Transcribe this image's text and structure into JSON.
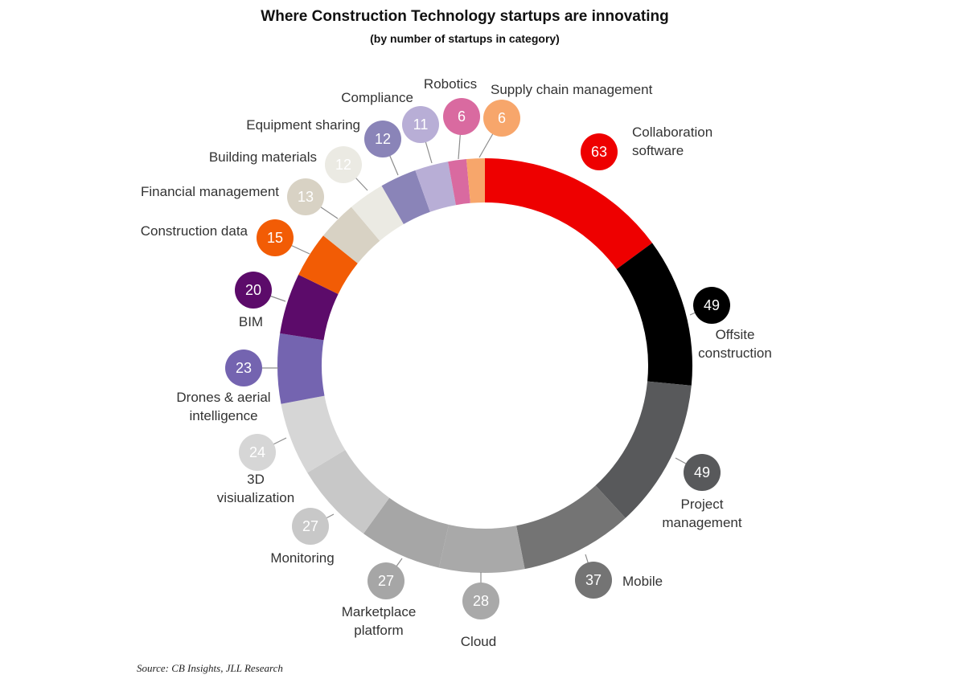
{
  "chart_data": {
    "type": "pie",
    "title": "Where Construction Technology startups are innovating",
    "subtitle": "(by number of startups in category)",
    "source": "Source: CB Insights, JLL Research",
    "slices": [
      {
        "label": "Collaboration software",
        "label_lines": [
          "Collaboration",
          "software"
        ],
        "value": 63,
        "color": "#ee0000",
        "text_color": "#ffffff"
      },
      {
        "label": "Offsite construction",
        "label_lines": [
          "Offsite",
          "construction"
        ],
        "value": 49,
        "color": "#000000",
        "text_color": "#ffffff"
      },
      {
        "label": "Project management",
        "label_lines": [
          "Project",
          "management"
        ],
        "value": 49,
        "color": "#58595b",
        "text_color": "#ffffff"
      },
      {
        "label": "Mobile",
        "label_lines": [
          "Mobile"
        ],
        "value": 37,
        "color": "#747474",
        "text_color": "#ffffff"
      },
      {
        "label": "Cloud",
        "label_lines": [
          "Cloud"
        ],
        "value": 28,
        "color": "#a9a9a9",
        "text_color": "#ffffff"
      },
      {
        "label": "Marketplace platform",
        "label_lines": [
          "Marketplace",
          "platform"
        ],
        "value": 27,
        "color": "#a6a6a6",
        "text_color": "#ffffff"
      },
      {
        "label": "Monitoring",
        "label_lines": [
          "Monitoring"
        ],
        "value": 27,
        "color": "#c8c8c8",
        "text_color": "#ffffff"
      },
      {
        "label": "3D visiualization",
        "label_lines": [
          "3D",
          "visiualization"
        ],
        "value": 24,
        "color": "#d6d6d6",
        "text_color": "#ffffff"
      },
      {
        "label": "Drones & aerial intelligence",
        "label_lines": [
          "Drones & aerial",
          "intelligence"
        ],
        "value": 23,
        "color": "#7464b0",
        "text_color": "#ffffff"
      },
      {
        "label": "BIM",
        "label_lines": [
          "BIM"
        ],
        "value": 20,
        "color": "#5c0b6a",
        "text_color": "#ffffff"
      },
      {
        "label": "Construction data",
        "label_lines": [
          "Construction data"
        ],
        "value": 15,
        "color": "#f25c05",
        "text_color": "#ffffff"
      },
      {
        "label": "Financial management",
        "label_lines": [
          "Financial management"
        ],
        "value": 13,
        "color": "#d8d2c4",
        "text_color": "#ffffff"
      },
      {
        "label": "Building materials",
        "label_lines": [
          "Building materials"
        ],
        "value": 12,
        "color": "#ebeae3",
        "text_color": "#ffffff"
      },
      {
        "label": "Equipment sharing",
        "label_lines": [
          "Equipment sharing"
        ],
        "value": 12,
        "color": "#8a84b8",
        "text_color": "#ffffff"
      },
      {
        "label": "Compliance",
        "label_lines": [
          "Compliance"
        ],
        "value": 11,
        "color": "#b8aed6",
        "text_color": "#ffffff"
      },
      {
        "label": "Robotics",
        "label_lines": [
          "Robotics"
        ],
        "value": 6,
        "color": "#d96aa0",
        "text_color": "#ffffff"
      },
      {
        "label": "Supply chain management",
        "label_lines": [
          "Supply chain management"
        ],
        "value": 6,
        "color": "#f7a66b",
        "text_color": "#ffffff"
      }
    ]
  }
}
